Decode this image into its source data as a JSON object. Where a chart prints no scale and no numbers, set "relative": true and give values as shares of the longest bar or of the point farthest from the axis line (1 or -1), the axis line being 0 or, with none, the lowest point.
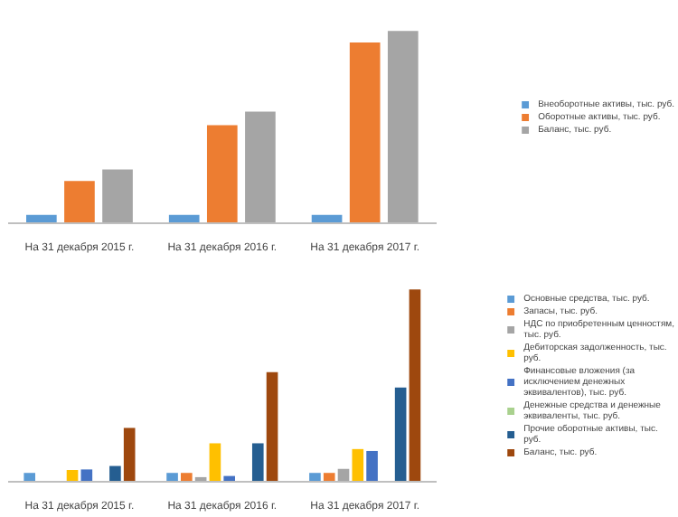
{
  "chart_data": [
    {
      "type": "bar",
      "relative": true,
      "categories": [
        "На 31 декабря 2015 г.",
        "На 31 декабря 2016 г.",
        "На 31 декабря 2017 г."
      ],
      "legend": "right",
      "grid": false,
      "series": [
        {
          "name": "Внеоборотные активы, тыс. руб.",
          "color": "#5b9bd5",
          "values": [
            0.044,
            0.044,
            0.044
          ]
        },
        {
          "name": "Оборотные активы, тыс. руб.",
          "color": "#ed7d31",
          "values": [
            0.22,
            0.51,
            0.94
          ]
        },
        {
          "name": "Баланс, тыс. руб.",
          "color": "#a5a5a5",
          "values": [
            0.28,
            0.58,
            1
          ]
        }
      ]
    },
    {
      "type": "bar",
      "relative": true,
      "categories": [
        "На 31 декабря 2015 г.",
        "На 31 декабря 2016 г.",
        "На 31 декабря 2017 г."
      ],
      "legend": "right",
      "grid": false,
      "series": [
        {
          "name": "Основные средства, тыс. руб.",
          "color": "#5b9bd5",
          "values": [
            0.046,
            0.046,
            0.046
          ]
        },
        {
          "name": "Запасы, тыс. руб.",
          "color": "#ed7d31",
          "values": [
            null,
            0.046,
            0.046
          ]
        },
        {
          "name": "НДС по приобретенным ценностям, тыс. руб.",
          "color": "#a5a5a5",
          "values": [
            null,
            0.024,
            0.067
          ]
        },
        {
          "name": "Дебиторская задолженность, тыс. руб.",
          "color": "#ffc000",
          "values": [
            0.061,
            0.2,
            0.17
          ]
        },
        {
          "name": "Финансовые вложения (за исключением денежных эквивалентов), тыс. руб.",
          "color": "#4472c4",
          "values": [
            0.064,
            0.03,
            0.16
          ]
        },
        {
          "name": "Денежные средства и денежные эквиваленты, тыс. руб.",
          "color": "#a9d18e",
          "values": [
            0.003,
            null,
            0.003
          ]
        },
        {
          "name": "Прочие оборотные активы, тыс. руб.",
          "color": "#255e91",
          "values": [
            0.082,
            0.2,
            0.49
          ]
        },
        {
          "name": "Баланс, тыс. руб.",
          "color": "#9e480e",
          "values": [
            0.28,
            0.57,
            1
          ]
        }
      ]
    }
  ]
}
